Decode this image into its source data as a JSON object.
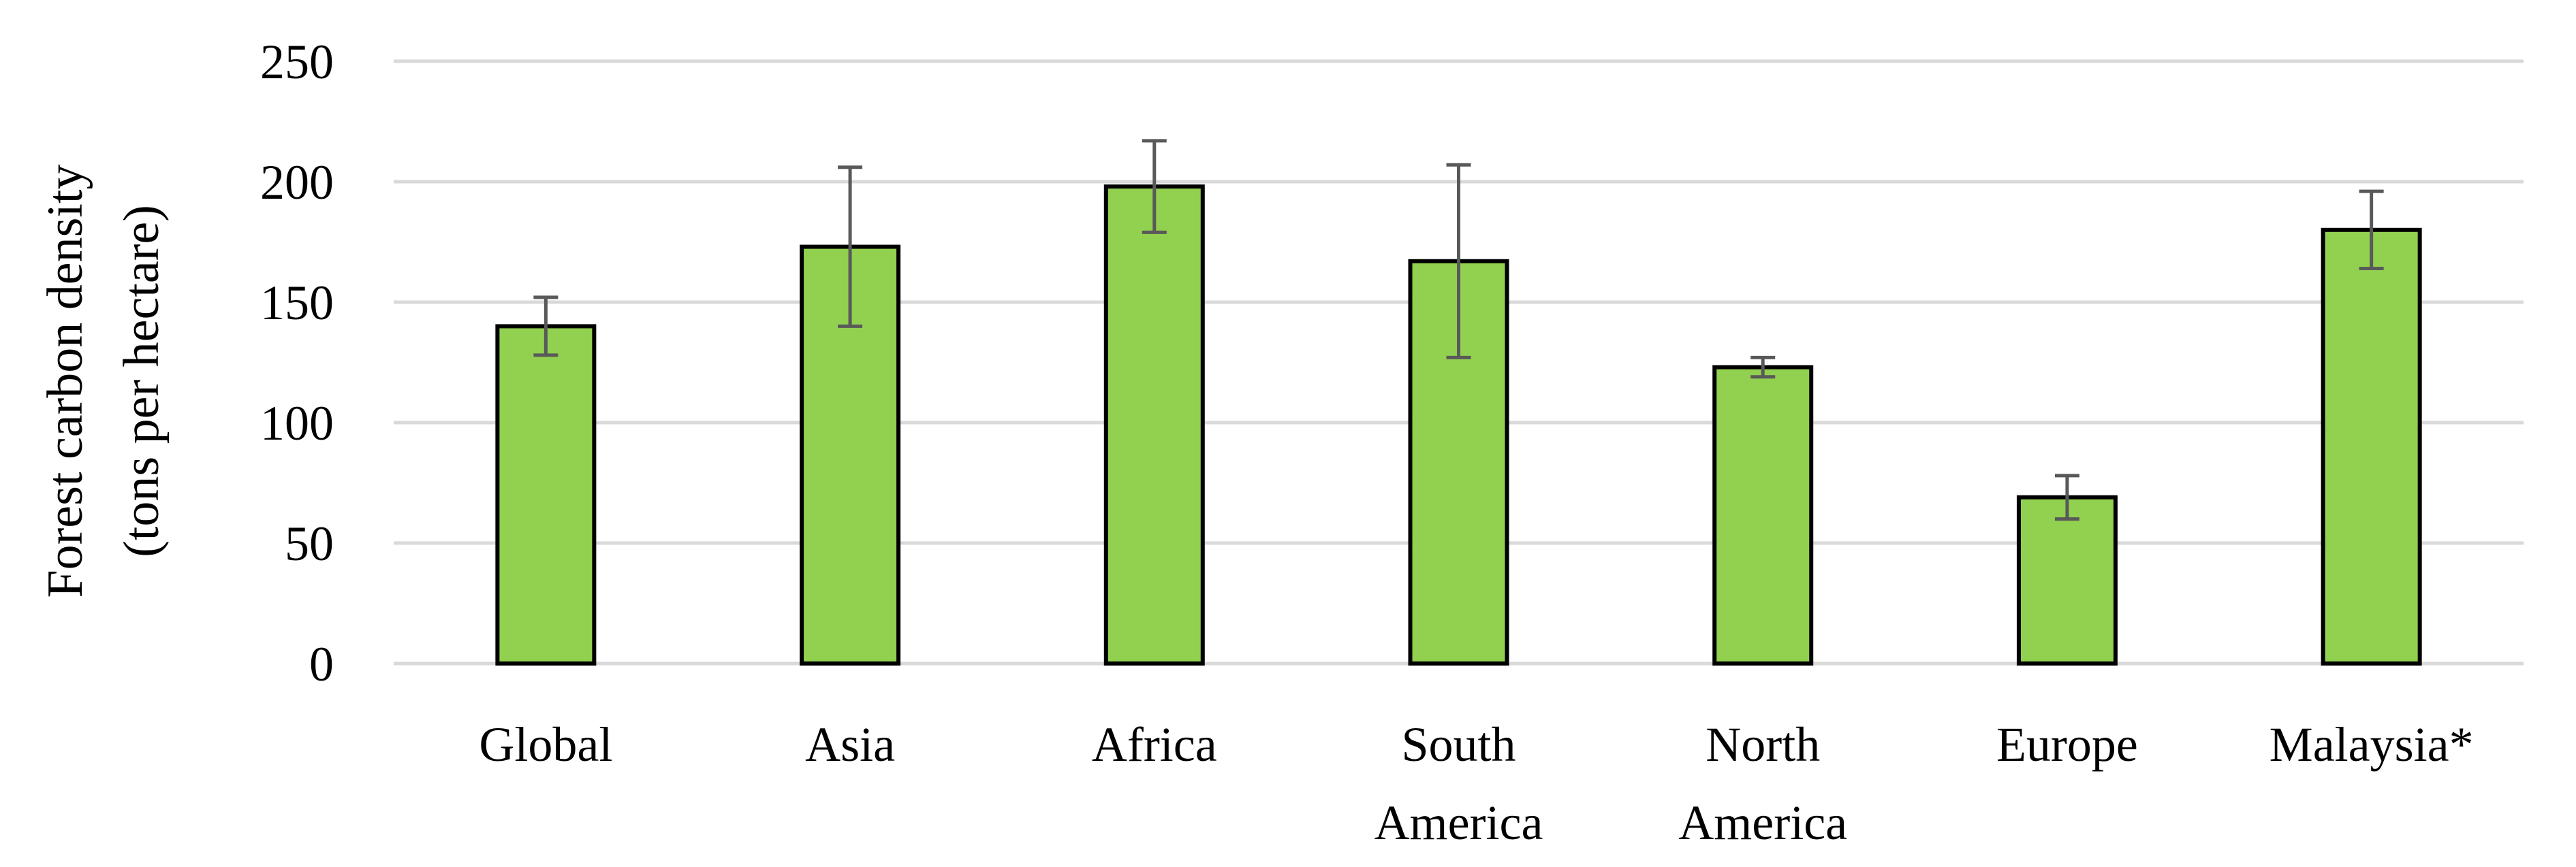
{
  "chart_data": {
    "type": "bar",
    "categories": [
      [
        "Global"
      ],
      [
        "Asia"
      ],
      [
        "Africa"
      ],
      [
        "South",
        "America"
      ],
      [
        "North",
        "America"
      ],
      [
        "Europe"
      ],
      [
        "Malaysia*"
      ]
    ],
    "values": [
      140,
      173,
      198,
      167,
      123,
      69,
      180
    ],
    "error_low": [
      128,
      140,
      179,
      127,
      119,
      60,
      164
    ],
    "error_high": [
      152,
      206,
      217,
      207,
      127,
      78,
      196
    ],
    "ylabel_lines": [
      "Forest carbon density",
      "(tons per hectare)"
    ],
    "xlabel": "",
    "ylim": [
      0,
      250
    ],
    "yticks": [
      0,
      50,
      100,
      150,
      200,
      250
    ],
    "grid": true,
    "legend": "none",
    "colors": {
      "bar_fill": "#92d050",
      "bar_outline": "#000000",
      "error_bar": "#595959",
      "gridline": "#d9d9d9"
    }
  }
}
